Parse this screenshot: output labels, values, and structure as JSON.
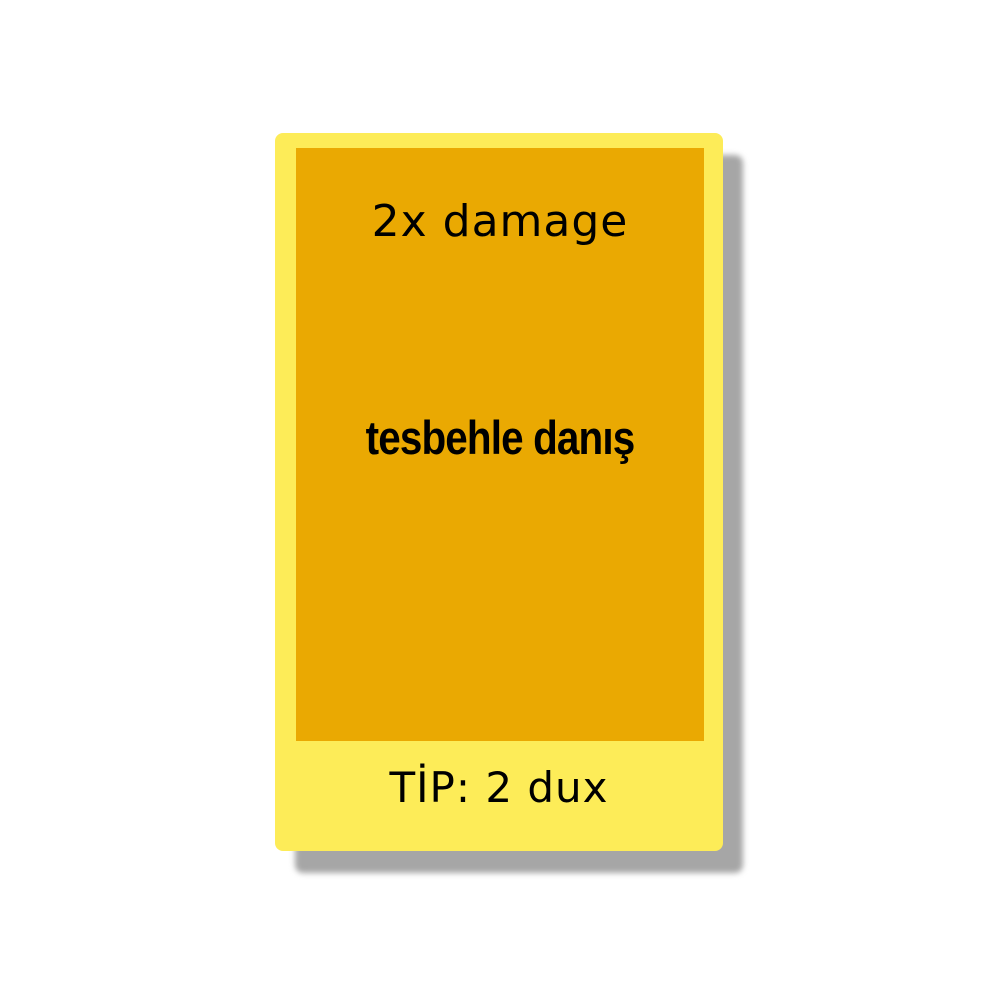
{
  "card": {
    "effect": "2x damage",
    "name": "tesbehle danış",
    "tip": "TİP: 2 dux",
    "colors": {
      "border": "#fdec58",
      "face": "#eaa902",
      "shadow": "#a6a6a6"
    }
  }
}
